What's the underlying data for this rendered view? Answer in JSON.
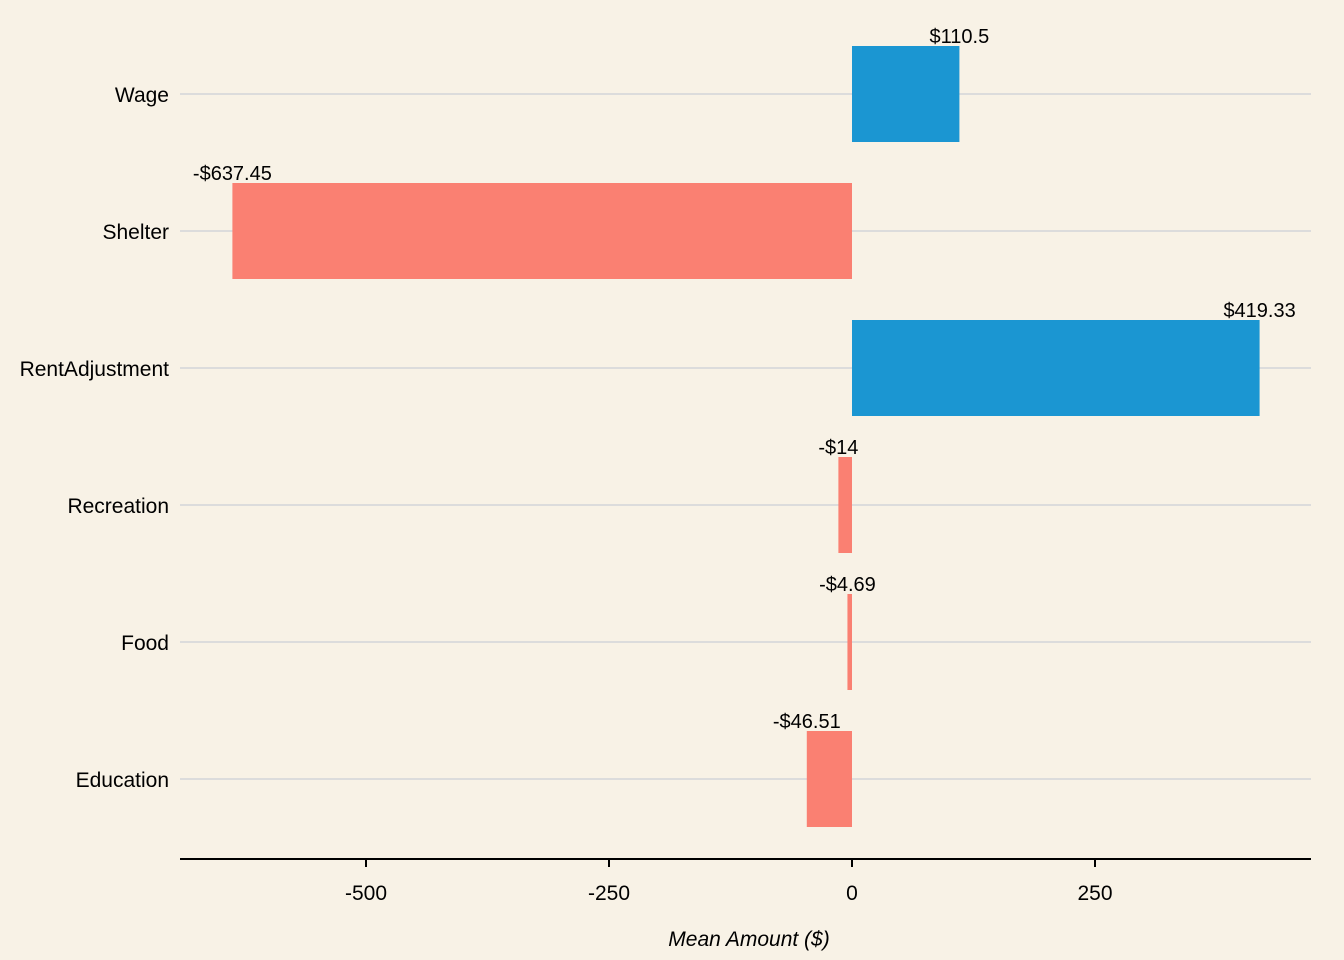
{
  "chart_data": {
    "type": "bar",
    "orientation": "horizontal",
    "categories": [
      "Wage",
      "Shelter",
      "RentAdjustment",
      "Recreation",
      "Food",
      "Education"
    ],
    "values": [
      110.5,
      -637.45,
      419.33,
      -14,
      -4.69,
      -46.51
    ],
    "data_labels": [
      "$110.5",
      "-$637.45",
      "$419.33",
      "-$14",
      "-$4.69",
      "-$46.51"
    ],
    "xticks": [
      -500,
      -250,
      0,
      250
    ],
    "xtick_labels": [
      "-500",
      "-250",
      "0",
      "250"
    ],
    "xlim": [
      -690,
      472
    ],
    "xlabel": "Mean Amount ($)",
    "ylabel": "",
    "title": "",
    "grid": "horizontal",
    "colors": {
      "positive": "#1B96D2",
      "negative": "#FA8072",
      "background": "#F8F2E6",
      "gridline": "#DCDCDC",
      "axis": "#000000"
    }
  }
}
